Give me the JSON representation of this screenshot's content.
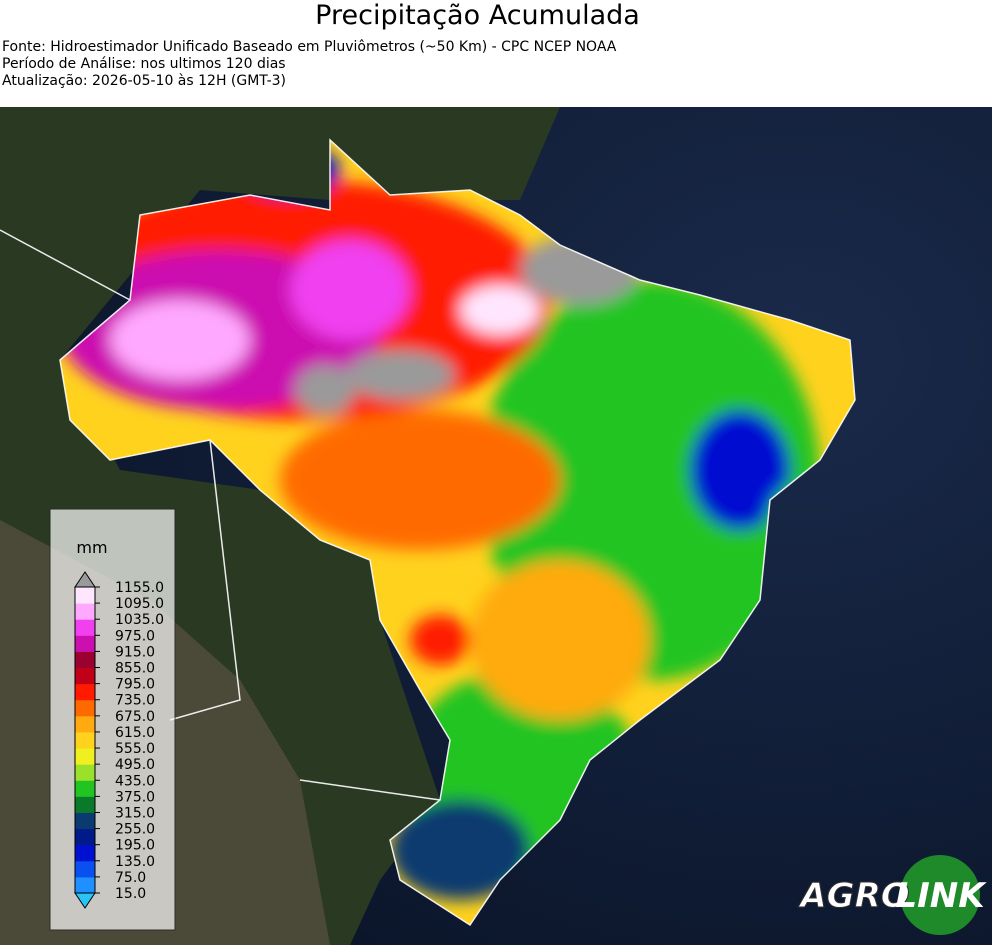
{
  "header": {
    "title": "Precipitação Acumulada",
    "lines": [
      "Fonte: Hidroestimador Unificado Baseado em Pluviômetros (~50 Km) - CPC NCEP NOAA",
      "Período de Análise: nos ultimos 120 dias",
      "Atualização: 2026-05-10 às 12H (GMT-3)"
    ]
  },
  "legend": {
    "unit": "mm",
    "ticks": [
      "15.0",
      "75.0",
      "135.0",
      "195.0",
      "255.0",
      "315.0",
      "375.0",
      "435.0",
      "495.0",
      "555.0",
      "615.0",
      "675.0",
      "735.0",
      "795.0",
      "855.0",
      "915.0",
      "975.0",
      "1035.0",
      "1095.0",
      "1155.0"
    ],
    "colors": [
      "#29c4f5",
      "#1e90ff",
      "#0a50f0",
      "#0010d0",
      "#001a8a",
      "#0a3a70",
      "#0a7a2a",
      "#22c422",
      "#9be02a",
      "#f0f020",
      "#ffd21e",
      "#ffaa10",
      "#ff6a00",
      "#ff1a00",
      "#c00018",
      "#9a0030",
      "#cc10b0",
      "#f040f0",
      "#ffa8ff",
      "#ffe6ff",
      "#9a9a9a"
    ]
  },
  "logo": {
    "left": "AGRO",
    "right": "LINK"
  }
}
